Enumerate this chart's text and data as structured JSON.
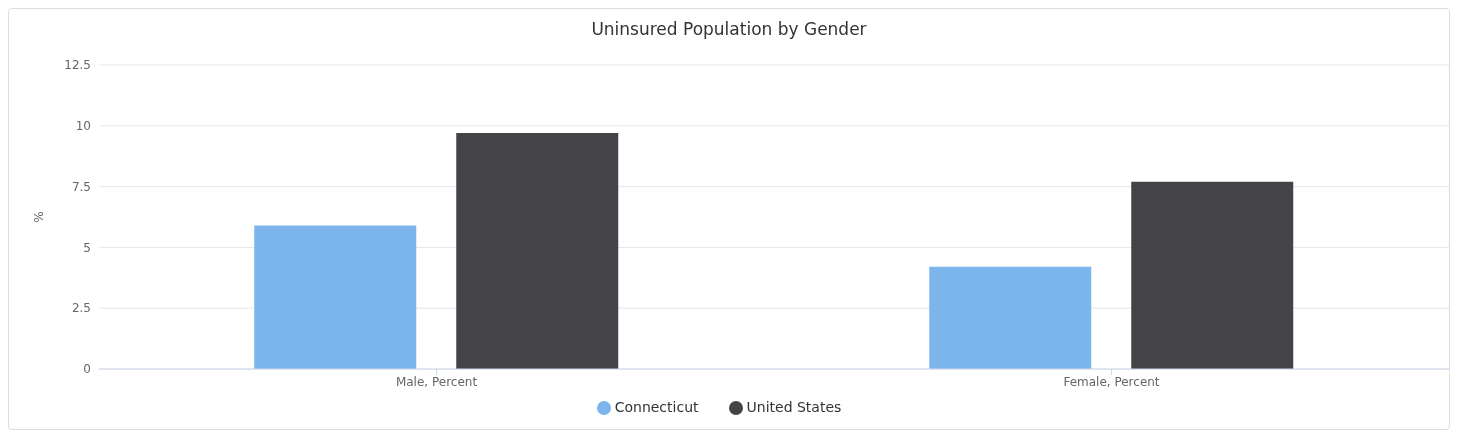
{
  "chart_data": {
    "type": "bar",
    "title": "Uninsured Population by Gender",
    "ylabel": "%",
    "categories": [
      "Male, Percent",
      "Female, Percent"
    ],
    "series": [
      {
        "name": "Connecticut",
        "color": "#7cb5ec",
        "values": [
          5.9,
          4.2
        ]
      },
      {
        "name": "United States",
        "color": "#434348",
        "values": [
          9.7,
          7.7
        ]
      }
    ],
    "ylim": [
      0,
      12.5
    ],
    "yticks": [
      0,
      2.5,
      5,
      7.5,
      10,
      12.5
    ],
    "grid": "y",
    "legend": "bottom"
  }
}
